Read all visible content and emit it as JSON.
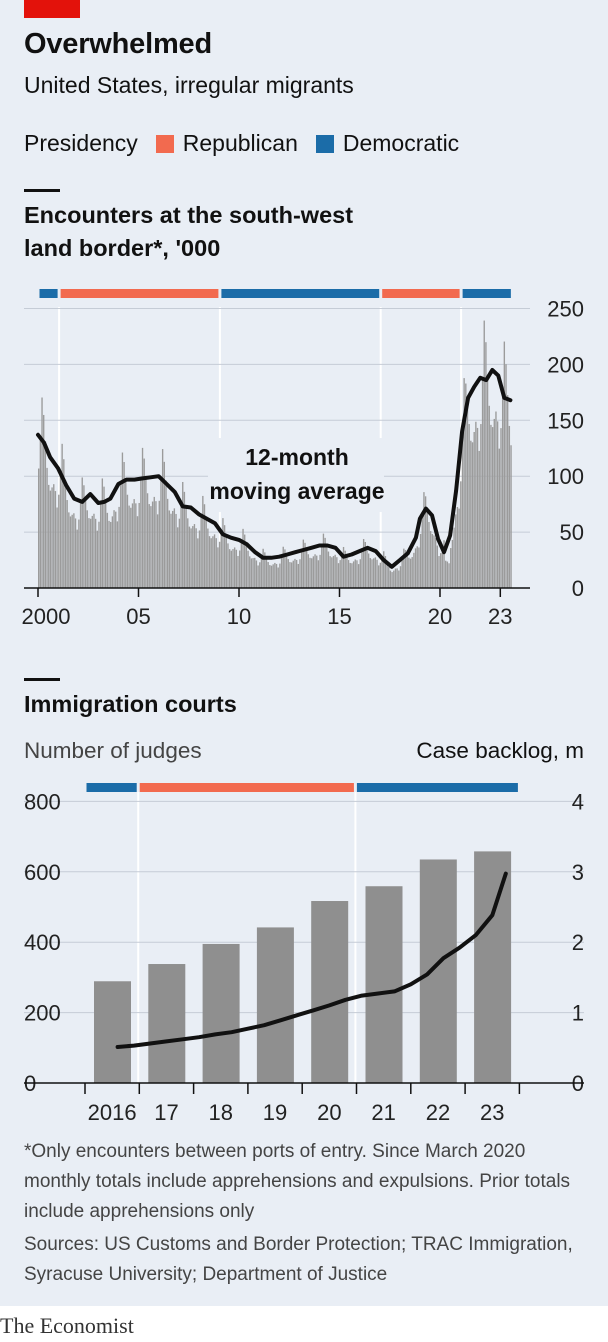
{
  "header": {
    "title": "Overwhelmed",
    "subtitle": "United States, irregular migrants",
    "legend_label": "Presidency",
    "legend_items": [
      {
        "label": "Republican",
        "color": "#f26a4f"
      },
      {
        "label": "Democratic",
        "color": "#1b6ca8"
      }
    ]
  },
  "chart_data": [
    {
      "type": "bar",
      "title": "Encounters at the south-west land border*, '000",
      "annotation": "12-month moving average",
      "ylim": [
        0,
        250
      ],
      "yticks": [
        "0",
        "50",
        "100",
        "150",
        "200",
        "250"
      ],
      "xticks": [
        "2000",
        "05",
        "10",
        "15",
        "20",
        "23"
      ],
      "presidency": [
        {
          "party": "Democratic",
          "start": 2000.0,
          "end": 2001.05
        },
        {
          "party": "Republican",
          "start": 2001.05,
          "end": 2009.05
        },
        {
          "party": "Democratic",
          "start": 2009.05,
          "end": 2017.05
        },
        {
          "party": "Republican",
          "start": 2017.05,
          "end": 2021.05
        },
        {
          "party": "Democratic",
          "start": 2021.05,
          "end": 2023.6
        }
      ],
      "monthly_seasonal_profile": [
        0.78,
        1.0,
        1.28,
        1.18,
        1.02,
        0.86,
        0.76,
        0.74,
        0.78,
        0.82,
        0.78,
        0.66
      ],
      "moving_average": {
        "x": [
          2000.0,
          2000.3,
          2000.6,
          2001.0,
          2001.4,
          2001.8,
          2002.2,
          2002.6,
          2003.0,
          2003.3,
          2003.6,
          2004.0,
          2004.4,
          2004.8,
          2005.2,
          2005.6,
          2006.0,
          2006.4,
          2006.8,
          2007.2,
          2007.6,
          2008.0,
          2008.4,
          2008.8,
          2009.2,
          2009.6,
          2010.0,
          2010.4,
          2010.8,
          2011.2,
          2011.6,
          2012.0,
          2012.4,
          2012.8,
          2013.2,
          2013.6,
          2014.0,
          2014.4,
          2014.8,
          2015.2,
          2015.6,
          2016.0,
          2016.4,
          2016.8,
          2017.2,
          2017.6,
          2018.0,
          2018.4,
          2018.8,
          2019.0,
          2019.3,
          2019.6,
          2019.9,
          2020.2,
          2020.5,
          2020.8,
          2021.1,
          2021.4,
          2021.7,
          2022.0,
          2022.3,
          2022.6,
          2022.9,
          2023.2,
          2023.5
        ],
        "y": [
          137,
          130,
          117,
          107,
          92,
          80,
          77,
          84,
          76,
          77,
          80,
          93,
          97,
          97,
          98,
          99,
          100,
          93,
          86,
          73,
          72,
          66,
          62,
          58,
          48,
          45,
          43,
          39,
          32,
          27,
          27,
          28,
          30,
          32,
          34,
          36,
          38,
          38,
          36,
          28,
          30,
          33,
          36,
          33,
          25,
          19,
          25,
          31,
          45,
          62,
          71,
          65,
          44,
          32,
          47,
          87,
          140,
          170,
          180,
          188,
          186,
          195,
          190,
          170,
          168
        ]
      }
    },
    {
      "type": "bar",
      "title": "Immigration courts",
      "ylabel_left": "Number of judges",
      "ylabel_right": "Case backlog, m",
      "ylim": [
        0,
        800
      ],
      "ylim_right": [
        0,
        4
      ],
      "yticks": [
        "0",
        "200",
        "400",
        "600",
        "800"
      ],
      "yticks_right": [
        "0",
        "1",
        "2",
        "3",
        "4"
      ],
      "categories": [
        "2016",
        "17",
        "18",
        "19",
        "20",
        "21",
        "22",
        "23"
      ],
      "values": [
        289,
        338,
        395,
        442,
        517,
        559,
        635,
        658
      ],
      "presidency": [
        {
          "party": "Democratic",
          "start": 0.0,
          "end": 0.98
        },
        {
          "party": "Republican",
          "start": 0.98,
          "end": 4.98
        },
        {
          "party": "Democratic",
          "start": 4.98,
          "end": 8.0
        }
      ],
      "backlog": {
        "x": [
          0.6,
          0.9,
          1.2,
          1.5,
          1.8,
          2.1,
          2.4,
          2.7,
          3.0,
          3.3,
          3.6,
          3.9,
          4.2,
          4.5,
          4.8,
          5.1,
          5.4,
          5.7,
          6.0,
          6.3,
          6.6,
          6.9,
          7.2,
          7.5,
          7.75
        ],
        "y": [
          0.51,
          0.53,
          0.56,
          0.59,
          0.62,
          0.65,
          0.69,
          0.72,
          0.77,
          0.82,
          0.89,
          0.96,
          1.03,
          1.1,
          1.18,
          1.24,
          1.27,
          1.3,
          1.4,
          1.54,
          1.77,
          1.92,
          2.1,
          2.38,
          2.97
        ]
      }
    }
  ],
  "footnote": "*Only encounters between ports of entry. Since March 2020 monthly totals include apprehensions and expulsions. Prior totals include apprehensions only",
  "sources": "Sources: US Customs and Border Protection; TRAC Immigration, Syracuse University; Department of Justice",
  "brand": "The Economist",
  "colors": {
    "bar": "#9b9b9b",
    "line": "#111111",
    "republican": "#f26a4f",
    "democratic": "#1b6ca8",
    "grid": "#c5ccd6",
    "accent": "#e3120b"
  }
}
